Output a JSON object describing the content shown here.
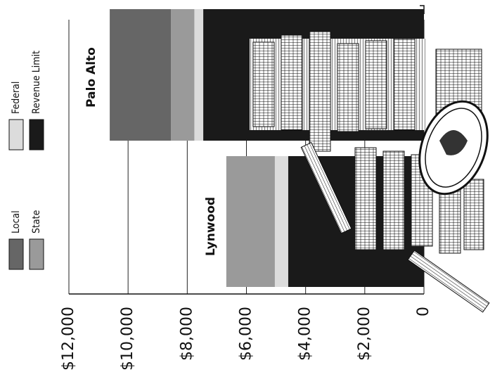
{
  "chart_data": {
    "type": "bar",
    "stacked": true,
    "grid": true,
    "categories": [
      "Palo Alto",
      "Lynwood"
    ],
    "series": [
      {
        "name": "Revenue Limit",
        "color": "#1a1a1a",
        "values": [
          7460,
          4590
        ]
      },
      {
        "name": "Federal",
        "color": "#dcdcdc",
        "values": [
          300,
          450
        ]
      },
      {
        "name": "State",
        "color": "#9a9a9a",
        "values": [
          790,
          1640
        ]
      },
      {
        "name": "Local",
        "color": "#666666",
        "values": [
          2070,
          0
        ]
      }
    ],
    "ylim": [
      0,
      12000
    ],
    "yticks": [
      0,
      {
        "value": 2000,
        "label": "$2,000"
      },
      {
        "value": 4000,
        "label": "$4,000"
      },
      {
        "value": 6000,
        "label": "$6,000"
      },
      {
        "value": 8000,
        "label": "$8,000"
      },
      {
        "value": 10000,
        "label": "$10,000"
      },
      {
        "value": 12000,
        "label": "$12,000"
      }
    ]
  }
}
